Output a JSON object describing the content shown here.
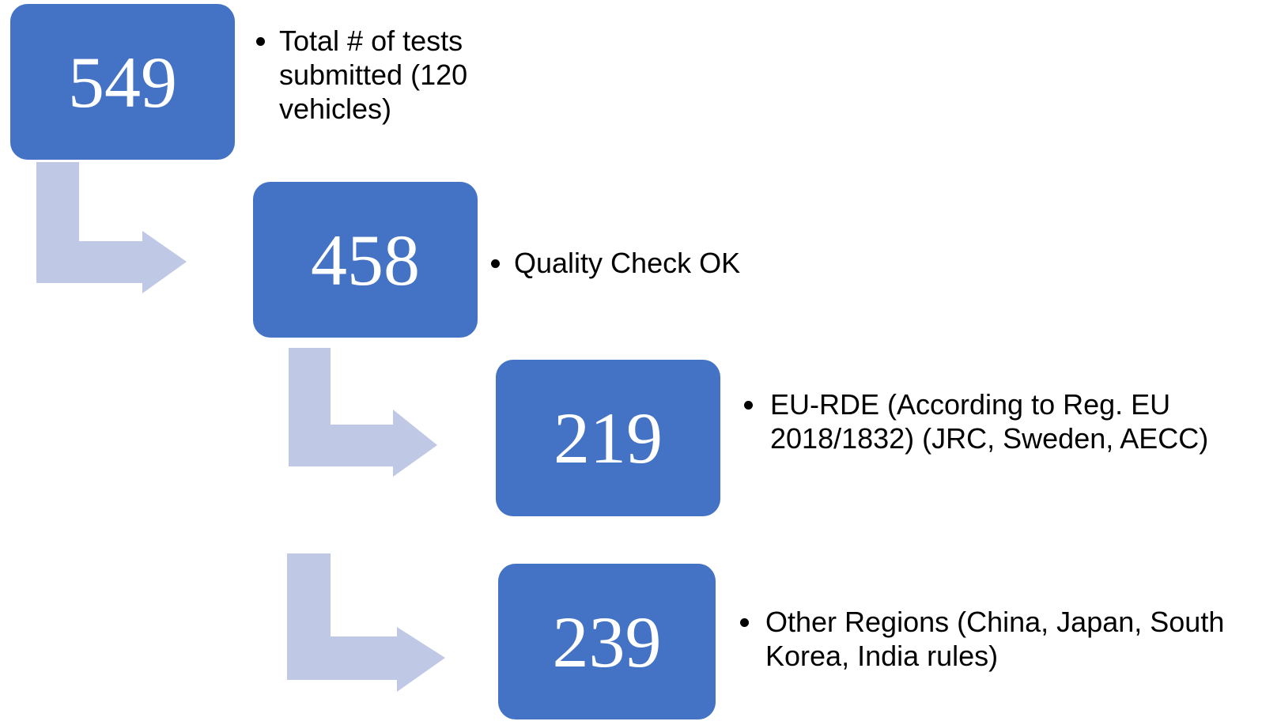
{
  "nodes": [
    {
      "value": 549,
      "label": "Total # of tests submitted (120 vehicles)"
    },
    {
      "value": 458,
      "label": "Quality Check OK"
    },
    {
      "value": 219,
      "label": "EU-RDE (According to Reg. EU 2018/1832) (JRC, Sweden, AECC)"
    },
    {
      "value": 239,
      "label": "Other Regions (China, Japan, South Korea, India rules)"
    }
  ]
}
